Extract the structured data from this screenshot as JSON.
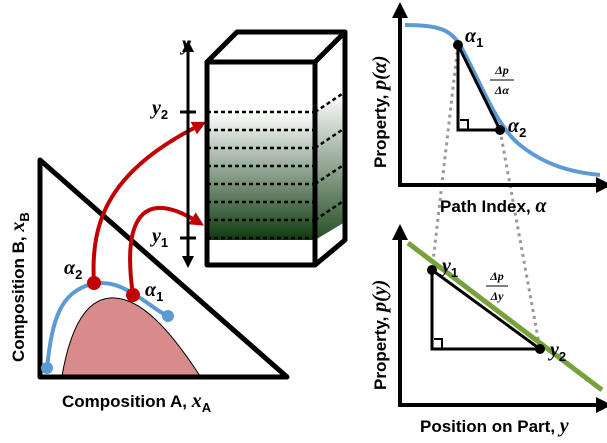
{
  "triangle": {
    "alpha2": {
      "sym": "α",
      "sub": "2"
    },
    "alpha1": {
      "sym": "α",
      "sub": "1"
    },
    "y_axis_label": {
      "text": "Composition B, ",
      "var": "x",
      "sub": "B"
    },
    "x_axis_label": {
      "text": "Composition A, ",
      "var": "x",
      "sub": "A"
    }
  },
  "part": {
    "axis": "y",
    "y2": {
      "sym": "y",
      "sub": "2"
    },
    "y1": {
      "sym": "y",
      "sub": "1"
    }
  },
  "top_plot": {
    "y_axis_label": {
      "text": "Property, ",
      "fn": "p",
      "arg": "α"
    },
    "x_axis_label": {
      "text": "Path Index, ",
      "var": "α"
    },
    "point1": {
      "sym": "α",
      "sub": "1"
    },
    "point2": {
      "sym": "α",
      "sub": "2"
    },
    "slope": {
      "num": "Δp",
      "den": "Δα"
    }
  },
  "bottom_plot": {
    "y_axis_label": {
      "text": "Property, ",
      "fn": "p",
      "arg": "y"
    },
    "x_axis_label": {
      "text": "Position on Part, ",
      "var": "y"
    },
    "point1": {
      "sym": "y",
      "sub": "1"
    },
    "point2": {
      "sym": "y",
      "sub": "2"
    },
    "slope": {
      "num": "Δp",
      "den": "Δy"
    }
  }
}
